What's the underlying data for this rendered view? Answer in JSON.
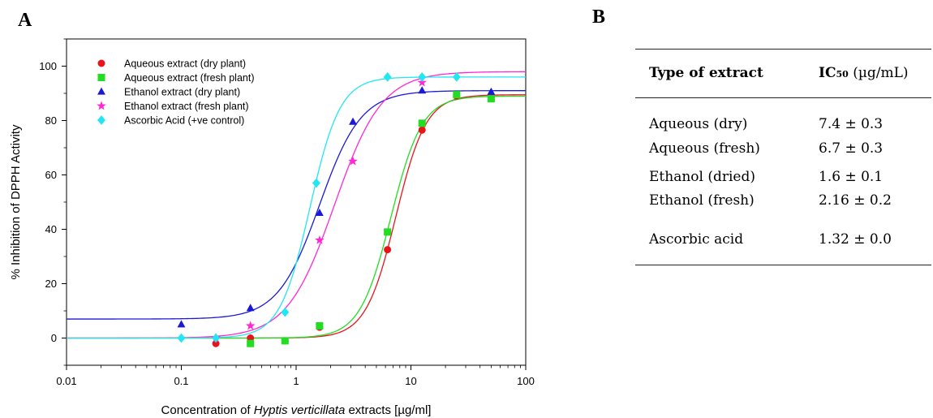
{
  "panels": {
    "a": "A",
    "b": "B"
  },
  "chart_data": {
    "type": "scatter",
    "xscale": "log",
    "xlim": [
      0.01,
      100
    ],
    "ylim": [
      -10,
      110
    ],
    "xticks": [
      "0.01",
      "0.1",
      "1",
      "10",
      "100"
    ],
    "yticks": [
      "0",
      "20",
      "40",
      "60",
      "80",
      "100"
    ],
    "ylabel": "% Inhibition of DPPH Activity",
    "xlabel": {
      "before": "Concentration of ",
      "italic": "Hyptis verticillata",
      "after": " extracts [µg/ml]"
    },
    "grid": false,
    "legend_position": "top-left",
    "series": [
      {
        "name": "Aqueous extract (dry plant)",
        "color": "#e8141c",
        "marker": "circle",
        "x": [
          0.2,
          0.4,
          0.8,
          1.6,
          6.25,
          12.5,
          25,
          50
        ],
        "y": [
          -2,
          0,
          -1,
          4,
          32.5,
          76.5,
          89,
          89
        ],
        "fit": {
          "bottom": 0,
          "top": 89.5,
          "ec50": 7.4,
          "hill": 3.3
        }
      },
      {
        "name": "Aqueous extract (fresh plant)",
        "color": "#22dd22",
        "marker": "square",
        "x": [
          0.4,
          0.8,
          1.6,
          6.25,
          12.5,
          25,
          50
        ],
        "y": [
          -2,
          -1,
          4.5,
          39,
          79,
          89.5,
          88
        ],
        "fit": {
          "bottom": 0,
          "top": 89,
          "ec50": 6.7,
          "hill": 3.2
        }
      },
      {
        "name": "Ethanol extract (dry plant)",
        "color": "#1a1ad6",
        "marker": "triangle",
        "x": [
          0.1,
          0.4,
          1.6,
          3.125,
          12.5,
          50
        ],
        "y": [
          5,
          11,
          46,
          79.5,
          91,
          90.5
        ],
        "fit": {
          "bottom": 7,
          "top": 91,
          "ec50": 1.6,
          "hill": 2.4
        }
      },
      {
        "name": "Ethanol extract (fresh plant)",
        "color": "#ff28d4",
        "marker": "star",
        "x": [
          0.2,
          0.4,
          1.6,
          3.125,
          12.5
        ],
        "y": [
          0,
          4.5,
          36,
          65,
          94
        ],
        "fit": {
          "bottom": 0,
          "top": 98,
          "ec50": 2.16,
          "hill": 2.1
        }
      },
      {
        "name": "Ascorbic Acid (+ve control)",
        "color": "#22e6f2",
        "marker": "diamond",
        "x": [
          0.1,
          0.2,
          0.8,
          1.5,
          6.25,
          12.5,
          25
        ],
        "y": [
          0,
          0,
          9.5,
          57,
          96,
          96,
          96
        ],
        "fit": {
          "bottom": 0,
          "top": 96,
          "ec50": 1.32,
          "hill": 3.3
        }
      }
    ]
  },
  "table": {
    "header": {
      "type": "Type of extract",
      "ic_bold": "IC",
      "ic_sub": "50",
      "ic_unit": " (µg/mL)"
    },
    "rows": [
      {
        "type": "Aqueous (dry)",
        "value": "7.4 ± 0.3"
      },
      {
        "type": "Aqueous (fresh)",
        "value": "6.7 ± 0.3"
      },
      {
        "type": "Ethanol (dried)",
        "value": "1.6 ± 0.1"
      },
      {
        "type": "Ethanol (fresh)",
        "value": "2.16 ± 0.2"
      },
      {
        "type": "Ascorbic acid",
        "value": "1.32 ± 0.0"
      }
    ]
  }
}
